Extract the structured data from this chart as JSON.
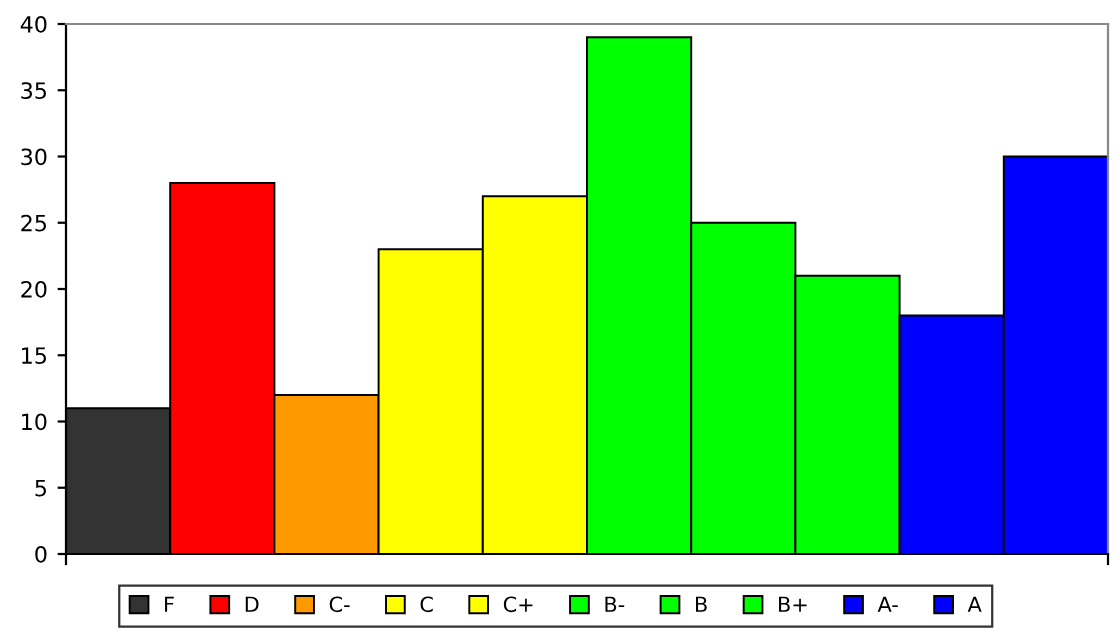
{
  "chart_data": {
    "type": "bar",
    "categories": [
      null,
      null,
      null,
      null,
      null,
      null,
      null,
      null,
      null,
      null
    ],
    "series": [
      {
        "name": "F",
        "color": "#333333",
        "values": [
          11,
          null,
          null,
          null,
          null,
          null,
          null,
          null,
          null,
          null
        ]
      },
      {
        "name": "D",
        "color": "#ff0000",
        "values": [
          null,
          28,
          null,
          null,
          null,
          null,
          null,
          null,
          null,
          null
        ]
      },
      {
        "name": "C-",
        "color": "#ff9900",
        "values": [
          null,
          null,
          12,
          null,
          null,
          null,
          null,
          null,
          null,
          null
        ]
      },
      {
        "name": "C",
        "color": "#ffff00",
        "values": [
          null,
          null,
          null,
          23,
          null,
          null,
          null,
          null,
          null,
          null
        ]
      },
      {
        "name": "C+",
        "color": "#ffff00",
        "values": [
          null,
          null,
          null,
          null,
          27,
          null,
          null,
          null,
          null,
          null
        ]
      },
      {
        "name": "B-",
        "color": "#00ff00",
        "values": [
          null,
          null,
          null,
          null,
          null,
          39,
          null,
          null,
          null,
          null
        ]
      },
      {
        "name": "B",
        "color": "#00ff00",
        "values": [
          null,
          null,
          null,
          null,
          null,
          null,
          25,
          null,
          null,
          null
        ]
      },
      {
        "name": "B+",
        "color": "#00ff00",
        "values": [
          null,
          null,
          null,
          null,
          null,
          null,
          null,
          21,
          null,
          null
        ]
      },
      {
        "name": "A-",
        "color": "#0000ff",
        "values": [
          null,
          null,
          null,
          null,
          null,
          null,
          null,
          null,
          18,
          null
        ]
      },
      {
        "name": "A",
        "color": "#0000ff",
        "values": [
          null,
          null,
          null,
          null,
          null,
          null,
          null,
          null,
          null,
          30
        ]
      }
    ],
    "ylim": [
      0,
      40
    ],
    "yticks": [
      0,
      5,
      10,
      15,
      20,
      25,
      30,
      35,
      40
    ],
    "tick_labels": "y",
    "legend": "bottom",
    "grid": false
  }
}
